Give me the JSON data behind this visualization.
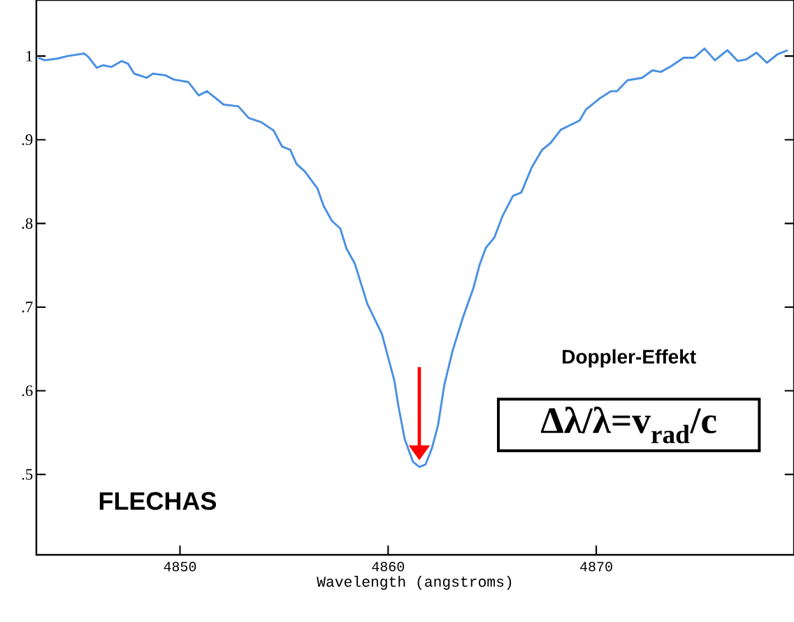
{
  "chart_data": {
    "type": "line",
    "xlabel": "Wavelength (angstroms)",
    "annotations": [
      "Doppler-Effekt",
      "Δλ/λ=v$_{rad}$/c",
      "FLECHAS"
    ],
    "x": [
      4843.2,
      4843.5,
      4844.1,
      4844.6,
      4845.4,
      4845.6,
      4846.0,
      4846.3,
      4846.7,
      4847.2,
      4847.5,
      4847.8,
      4848.4,
      4848.7,
      4849.3,
      4849.7,
      4850.4,
      4850.9,
      4851.3,
      4852.1,
      4852.8,
      4853.3,
      4853.9,
      4854.5,
      4854.9,
      4855.3,
      4855.6,
      4856.0,
      4856.6,
      4856.9,
      4857.3,
      4857.7,
      4858.0,
      4858.4,
      4858.7,
      4859.0,
      4859.7,
      4860.0,
      4860.3,
      4860.5,
      4860.8,
      4861.2,
      4861.5,
      4861.8,
      4862.1,
      4862.4,
      4862.7,
      4863.1,
      4863.6,
      4864.1,
      4864.4,
      4864.7,
      4865.1,
      4865.5,
      4866.0,
      4866.4,
      4866.9,
      4867.4,
      4867.8,
      4868.3,
      4869.2,
      4869.5,
      4870.2,
      4870.7,
      4871.0,
      4871.5,
      4872.2,
      4872.7,
      4873.1,
      4873.6,
      4874.2,
      4874.7,
      4875.2,
      4875.7,
      4876.3,
      4876.8,
      4877.2,
      4877.7,
      4878.2,
      4878.7,
      4879.2
    ],
    "series": [
      {
        "color": "#4a90e2",
        "values": [
          0.998,
          0.995,
          0.997,
          1.0,
          1.003,
          0.999,
          0.986,
          0.989,
          0.987,
          0.994,
          0.991,
          0.979,
          0.974,
          0.979,
          0.977,
          0.972,
          0.969,
          0.953,
          0.958,
          0.942,
          0.94,
          0.926,
          0.921,
          0.911,
          0.892,
          0.888,
          0.871,
          0.862,
          0.842,
          0.821,
          0.803,
          0.794,
          0.77,
          0.752,
          0.728,
          0.704,
          0.668,
          0.64,
          0.612,
          0.581,
          0.542,
          0.515,
          0.509,
          0.512,
          0.531,
          0.559,
          0.607,
          0.648,
          0.688,
          0.723,
          0.751,
          0.771,
          0.783,
          0.809,
          0.833,
          0.837,
          0.867,
          0.888,
          0.896,
          0.912,
          0.923,
          0.936,
          0.95,
          0.958,
          0.958,
          0.971,
          0.974,
          0.983,
          0.981,
          0.988,
          0.998,
          0.998,
          1.009,
          0.995,
          1.007,
          0.994,
          0.996,
          1.004,
          0.992,
          1.002,
          1.007
        ]
      }
    ],
    "xlim": [
      4843.1,
      4879.5
    ],
    "ylim": [
      0.404,
      1.067
    ],
    "xticks": [
      4850,
      4860,
      4870
    ],
    "yticks": [
      {
        "value": 0.5,
        "label": ".5"
      },
      {
        "value": 0.6,
        "label": ".6"
      },
      {
        "value": 0.7,
        "label": ".7"
      },
      {
        "value": 0.8,
        "label": ".8"
      },
      {
        "value": 0.9,
        "label": ".9"
      },
      {
        "value": 1,
        "label": "1"
      }
    ]
  }
}
